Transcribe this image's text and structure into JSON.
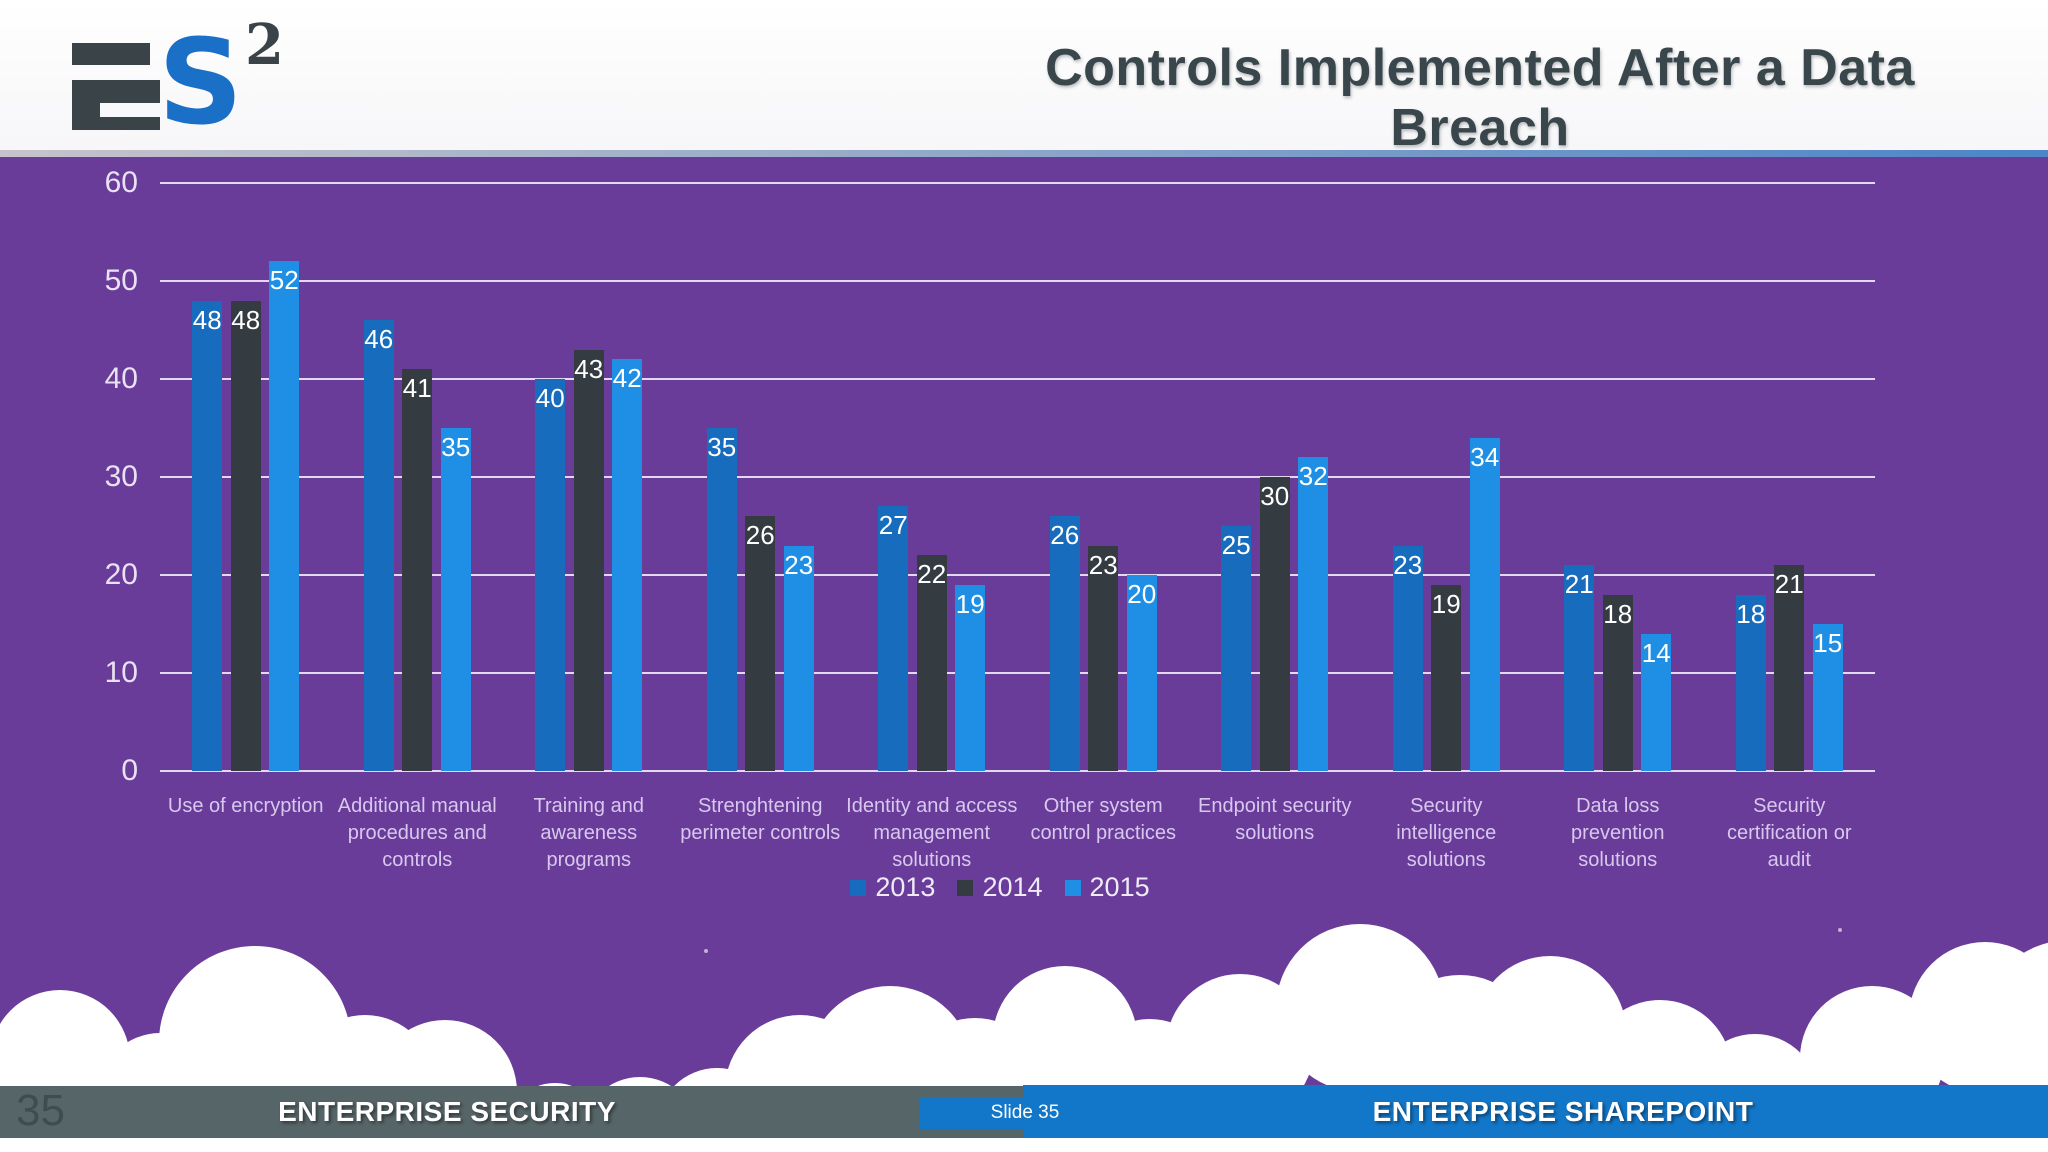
{
  "header": {
    "logo": {
      "letter_e": "E",
      "letter_s": "S",
      "superscript": "2"
    },
    "title": "Controls Implemented After a Data Breach"
  },
  "chart_data": {
    "type": "bar",
    "title": "Controls Implemented After a Data Breach",
    "categories": [
      "Use of encryption",
      "Additional manual procedures and controls",
      "Training and awareness programs",
      "Strenghtening perimeter controls",
      "Identity and access management solutions",
      "Other system control practices",
      "Endpoint security solutions",
      "Security intelligence solutions",
      "Data loss prevention solutions",
      "Security certification or audit"
    ],
    "series": [
      {
        "name": "2013",
        "color": "#176cbe",
        "values": [
          48,
          46,
          40,
          35,
          27,
          26,
          25,
          23,
          21,
          18
        ]
      },
      {
        "name": "2014",
        "color": "#343c42",
        "values": [
          48,
          41,
          43,
          26,
          22,
          23,
          30,
          19,
          18,
          21
        ]
      },
      {
        "name": "2015",
        "color": "#1f8fe6",
        "values": [
          52,
          35,
          42,
          23,
          19,
          20,
          32,
          34,
          14,
          15
        ]
      }
    ],
    "ylim": [
      0,
      60
    ],
    "yticks": [
      0,
      10,
      20,
      30,
      40,
      50,
      60
    ],
    "grid": true,
    "legend_position": "bottom",
    "value_labels": "inside-end"
  },
  "footer": {
    "page_number": "35",
    "left_banner": "ENTERPRISE SECURITY",
    "slide_indicator": "Slide 35",
    "right_banner": "ENTERPRISE SHAREPOINT"
  },
  "colors": {
    "background_purple": "#693c99",
    "series_2013": "#176cbe",
    "series_2014": "#343c42",
    "series_2015": "#1f8fe6",
    "footer_gray": "#566568",
    "footer_blue": "#1377c9",
    "logo_blue": "#1a6fc6",
    "logo_dark": "#3a4448",
    "title_color": "#39464b"
  }
}
